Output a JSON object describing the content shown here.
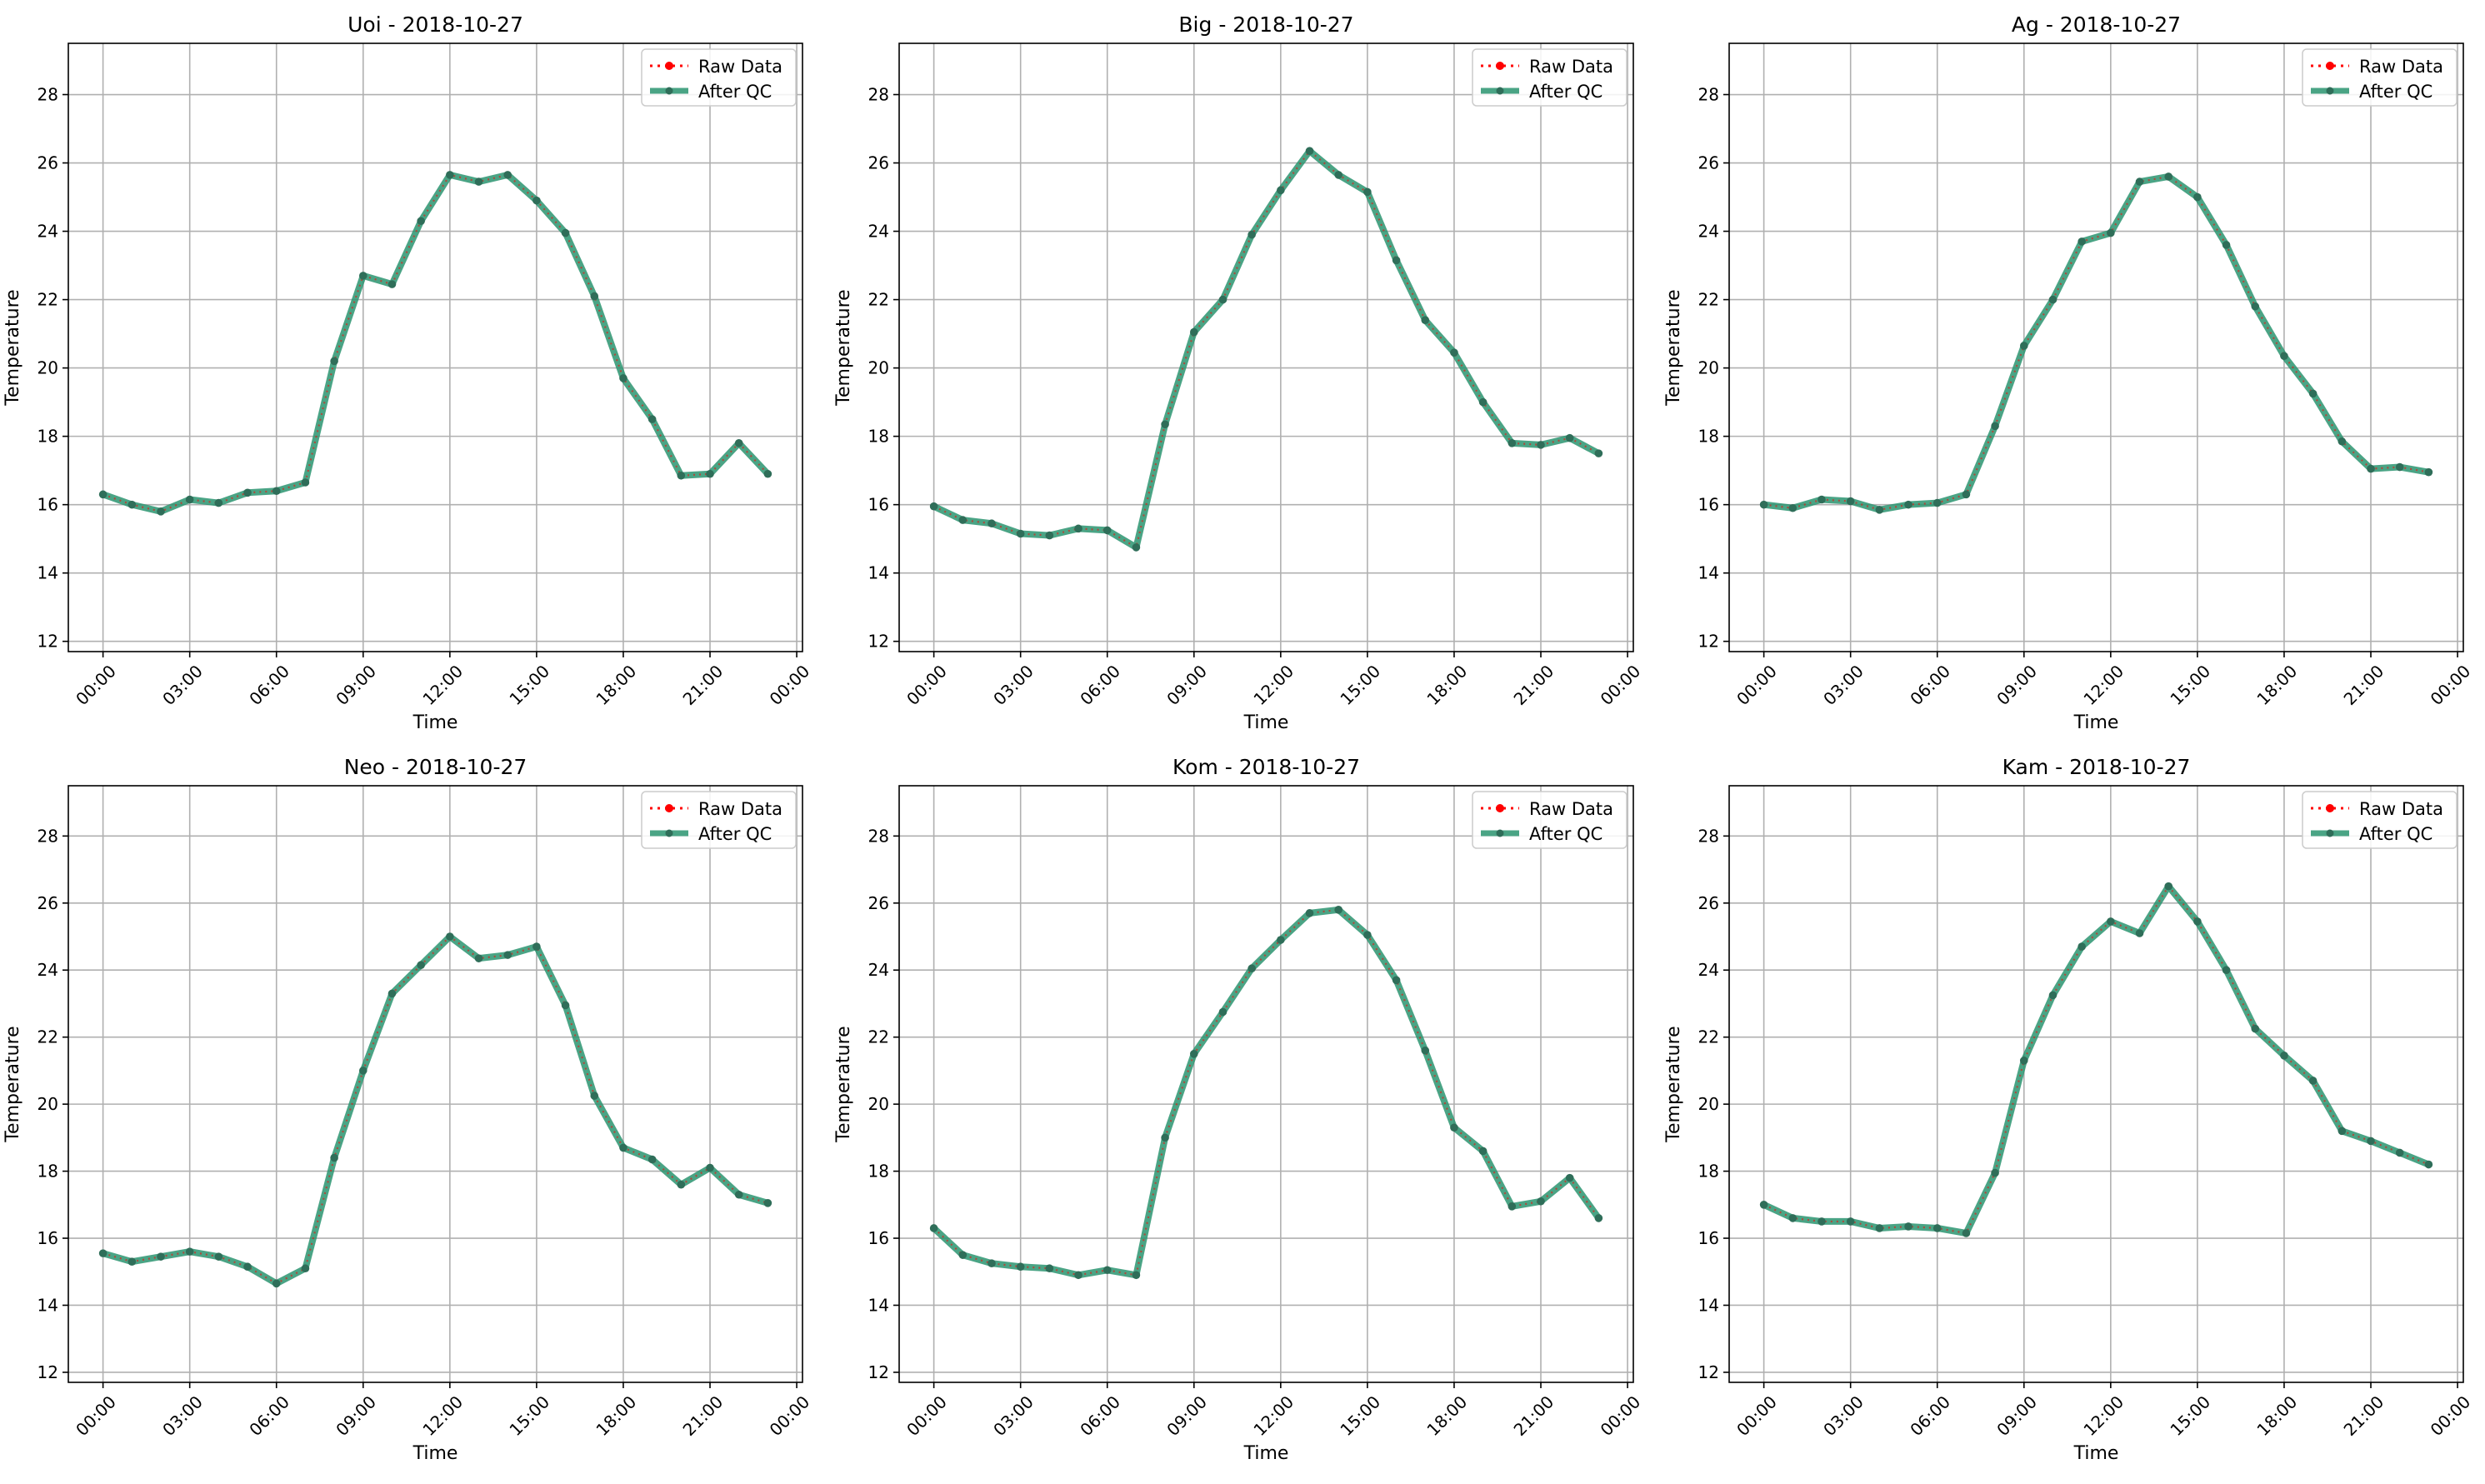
{
  "figure": {
    "background": "#ffffff"
  },
  "style": {
    "raw_color": "#ff0000",
    "qc_color": "#2a9470",
    "marker_color": "#2f6e59",
    "grid_color": "#b0b0b0"
  },
  "x_tick_labels": [
    "00:00",
    "03:00",
    "06:00",
    "09:00",
    "12:00",
    "15:00",
    "18:00",
    "21:00",
    "00:00"
  ],
  "chart_data": [
    {
      "type": "line",
      "title": "Uoi - 2018-10-27",
      "xlabel": "Time",
      "ylabel": "Temperature",
      "x_hours": [
        0,
        1,
        2,
        3,
        4,
        5,
        6,
        7,
        8,
        9,
        10,
        11,
        12,
        13,
        14,
        15,
        16,
        17,
        18,
        19,
        20,
        21,
        22,
        23
      ],
      "xlim": [
        -1.2,
        24.2
      ],
      "ylim": [
        11.7,
        29.5
      ],
      "yticks": [
        12,
        14,
        16,
        18,
        20,
        22,
        24,
        26,
        28
      ],
      "grid": true,
      "legend": "top-right",
      "series": [
        {
          "name": "Raw Data",
          "values": [
            16.3,
            16.0,
            15.8,
            16.15,
            16.05,
            16.35,
            16.4,
            16.65,
            20.2,
            22.7,
            22.45,
            24.3,
            25.65,
            25.45,
            25.65,
            24.9,
            23.95,
            22.1,
            19.7,
            18.5,
            16.85,
            16.9,
            17.8,
            16.9
          ]
        },
        {
          "name": "After QC",
          "values": [
            16.3,
            16.0,
            15.8,
            16.15,
            16.05,
            16.35,
            16.4,
            16.65,
            20.2,
            22.7,
            22.45,
            24.3,
            25.65,
            25.45,
            25.65,
            24.9,
            23.95,
            22.1,
            19.7,
            18.5,
            16.85,
            16.9,
            17.8,
            16.9
          ]
        }
      ]
    },
    {
      "type": "line",
      "title": "Big - 2018-10-27",
      "xlabel": "Time",
      "ylabel": "Temperature",
      "x_hours": [
        0,
        1,
        2,
        3,
        4,
        5,
        6,
        7,
        8,
        9,
        10,
        11,
        12,
        13,
        14,
        15,
        16,
        17,
        18,
        19,
        20,
        21,
        22,
        23
      ],
      "xlim": [
        -1.2,
        24.2
      ],
      "ylim": [
        11.7,
        29.5
      ],
      "yticks": [
        12,
        14,
        16,
        18,
        20,
        22,
        24,
        26,
        28
      ],
      "grid": true,
      "legend": "top-right",
      "series": [
        {
          "name": "Raw Data",
          "values": [
            15.95,
            15.55,
            15.45,
            15.15,
            15.1,
            15.3,
            15.25,
            14.75,
            18.35,
            21.05,
            22.0,
            23.9,
            25.2,
            26.35,
            25.65,
            25.15,
            23.15,
            21.4,
            20.45,
            19.0,
            17.8,
            17.75,
            17.95,
            17.5
          ]
        },
        {
          "name": "After QC",
          "values": [
            15.95,
            15.55,
            15.45,
            15.15,
            15.1,
            15.3,
            15.25,
            14.75,
            18.35,
            21.05,
            22.0,
            23.9,
            25.2,
            26.35,
            25.65,
            25.15,
            23.15,
            21.4,
            20.45,
            19.0,
            17.8,
            17.75,
            17.95,
            17.5
          ]
        }
      ]
    },
    {
      "type": "line",
      "title": "Ag - 2018-10-27",
      "xlabel": "Time",
      "ylabel": "Temperature",
      "x_hours": [
        0,
        1,
        2,
        3,
        4,
        5,
        6,
        7,
        8,
        9,
        10,
        11,
        12,
        13,
        14,
        15,
        16,
        17,
        18,
        19,
        20,
        21,
        22,
        23
      ],
      "xlim": [
        -1.2,
        24.2
      ],
      "ylim": [
        11.7,
        29.5
      ],
      "yticks": [
        12,
        14,
        16,
        18,
        20,
        22,
        24,
        26,
        28
      ],
      "grid": true,
      "legend": "top-right",
      "series": [
        {
          "name": "Raw Data",
          "values": [
            16.0,
            15.9,
            16.15,
            16.1,
            15.85,
            16.0,
            16.05,
            16.3,
            18.3,
            20.65,
            22.0,
            23.7,
            23.95,
            25.45,
            25.6,
            25.0,
            23.6,
            21.8,
            20.35,
            19.25,
            17.85,
            17.05,
            17.1,
            16.95
          ]
        },
        {
          "name": "After QC",
          "values": [
            16.0,
            15.9,
            16.15,
            16.1,
            15.85,
            16.0,
            16.05,
            16.3,
            18.3,
            20.65,
            22.0,
            23.7,
            23.95,
            25.45,
            25.6,
            25.0,
            23.6,
            21.8,
            20.35,
            19.25,
            17.85,
            17.05,
            17.1,
            16.95
          ]
        }
      ]
    },
    {
      "type": "line",
      "title": "Neo - 2018-10-27",
      "xlabel": "Time",
      "ylabel": "Temperature",
      "x_hours": [
        0,
        1,
        2,
        3,
        4,
        5,
        6,
        7,
        8,
        9,
        10,
        11,
        12,
        13,
        14,
        15,
        16,
        17,
        18,
        19,
        20,
        21,
        22,
        23
      ],
      "xlim": [
        -1.2,
        24.2
      ],
      "ylim": [
        11.7,
        29.5
      ],
      "yticks": [
        12,
        14,
        16,
        18,
        20,
        22,
        24,
        26,
        28
      ],
      "grid": true,
      "legend": "top-right",
      "series": [
        {
          "name": "Raw Data",
          "values": [
            15.55,
            15.3,
            15.45,
            15.6,
            15.45,
            15.15,
            14.65,
            15.1,
            18.4,
            21.0,
            23.3,
            24.15,
            25.0,
            24.35,
            24.45,
            24.7,
            22.95,
            20.25,
            18.7,
            18.35,
            17.6,
            18.1,
            17.3,
            17.05
          ]
        },
        {
          "name": "After QC",
          "values": [
            15.55,
            15.3,
            15.45,
            15.6,
            15.45,
            15.15,
            14.65,
            15.1,
            18.4,
            21.0,
            23.3,
            24.15,
            25.0,
            24.35,
            24.45,
            24.7,
            22.95,
            20.25,
            18.7,
            18.35,
            17.6,
            18.1,
            17.3,
            17.05
          ]
        }
      ]
    },
    {
      "type": "line",
      "title": "Kom - 2018-10-27",
      "xlabel": "Time",
      "ylabel": "Temperature",
      "x_hours": [
        0,
        1,
        2,
        3,
        4,
        5,
        6,
        7,
        8,
        9,
        10,
        11,
        12,
        13,
        14,
        15,
        16,
        17,
        18,
        19,
        20,
        21,
        22,
        23
      ],
      "xlim": [
        -1.2,
        24.2
      ],
      "ylim": [
        11.7,
        29.5
      ],
      "yticks": [
        12,
        14,
        16,
        18,
        20,
        22,
        24,
        26,
        28
      ],
      "grid": true,
      "legend": "top-right",
      "series": [
        {
          "name": "Raw Data",
          "values": [
            16.3,
            15.5,
            15.25,
            15.15,
            15.1,
            14.9,
            15.05,
            14.9,
            19.0,
            21.5,
            22.75,
            24.05,
            24.9,
            25.7,
            25.8,
            25.05,
            23.7,
            21.6,
            19.3,
            18.6,
            16.95,
            17.1,
            17.8,
            16.6
          ]
        },
        {
          "name": "After QC",
          "values": [
            16.3,
            15.5,
            15.25,
            15.15,
            15.1,
            14.9,
            15.05,
            14.9,
            19.0,
            21.5,
            22.75,
            24.05,
            24.9,
            25.7,
            25.8,
            25.05,
            23.7,
            21.6,
            19.3,
            18.6,
            16.95,
            17.1,
            17.8,
            16.6
          ]
        }
      ]
    },
    {
      "type": "line",
      "title": "Kam - 2018-10-27",
      "xlabel": "Time",
      "ylabel": "Temperature",
      "x_hours": [
        0,
        1,
        2,
        3,
        4,
        5,
        6,
        7,
        8,
        9,
        10,
        11,
        12,
        13,
        14,
        15,
        16,
        17,
        18,
        19,
        20,
        21,
        22,
        23
      ],
      "xlim": [
        -1.2,
        24.2
      ],
      "ylim": [
        11.7,
        29.5
      ],
      "yticks": [
        12,
        14,
        16,
        18,
        20,
        22,
        24,
        26,
        28
      ],
      "grid": true,
      "legend": "top-right",
      "series": [
        {
          "name": "Raw Data",
          "values": [
            17.0,
            16.6,
            16.5,
            16.5,
            16.3,
            16.35,
            16.3,
            16.15,
            17.95,
            21.3,
            23.25,
            24.7,
            25.45,
            25.1,
            26.5,
            25.45,
            24.0,
            22.25,
            21.45,
            20.7,
            19.2,
            18.9,
            18.55,
            18.2
          ]
        },
        {
          "name": "After QC",
          "values": [
            17.0,
            16.6,
            16.5,
            16.5,
            16.3,
            16.35,
            16.3,
            16.15,
            17.95,
            21.3,
            23.25,
            24.7,
            25.45,
            25.1,
            26.5,
            25.45,
            24.0,
            22.25,
            21.45,
            20.7,
            19.2,
            18.9,
            18.55,
            18.2
          ]
        }
      ]
    }
  ]
}
